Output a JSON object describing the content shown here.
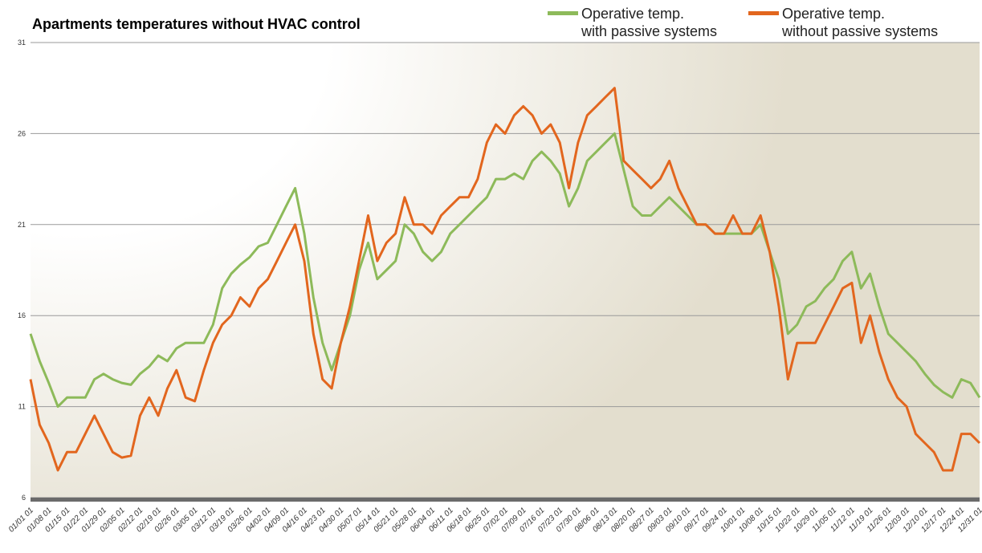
{
  "chart_data": {
    "type": "line",
    "title": "Apartments temperatures without HVAC control",
    "categories": [
      "01/01 01",
      null,
      "01/08 01",
      null,
      "01/15 01",
      null,
      "01/22 01",
      null,
      "01/29 01",
      null,
      "02/05 01",
      null,
      "02/12 01",
      null,
      "02/19 01",
      null,
      "02/26 01",
      null,
      "03/05 01",
      null,
      "03/12 01",
      null,
      "03/19 01",
      null,
      "03/26 01",
      null,
      "04/02 01",
      null,
      "04/09 01",
      null,
      "04/16 01",
      null,
      "04/23 01",
      null,
      "04/30 01",
      null,
      "05/07 01",
      null,
      "05/14 01",
      null,
      "05/21 01",
      null,
      "05/28 01",
      null,
      "06/04 01",
      null,
      "06/11 01",
      null,
      "06/18 01",
      null,
      "06/25 01",
      null,
      "07/02 01",
      null,
      "07/09 01",
      null,
      "07/16 01",
      null,
      "07/23 01",
      null,
      "07/30 01",
      null,
      "08/06 01",
      null,
      "08/13 01",
      null,
      "08/20 01",
      null,
      "08/27 01",
      null,
      "09/03 01",
      null,
      "09/10 01",
      null,
      "09/17 01",
      null,
      "09/24 01",
      null,
      "10/01 01",
      null,
      "10/08 01",
      null,
      "10/15 01",
      null,
      "10/22 01",
      null,
      "10/29 01",
      null,
      "11/05 01",
      null,
      "11/12 01",
      null,
      "11/19 01",
      null,
      "11/26 01",
      null,
      "12/03 01",
      null,
      "12/10 01",
      null,
      "12/17 01",
      null,
      "12/24 01",
      null,
      "12/31 01"
    ],
    "series": [
      {
        "name": "Operative  temp.\nwith passive systems",
        "color": "#8dba5a",
        "values": [
          15,
          13.5,
          12.3,
          11,
          11.5,
          11.5,
          11.5,
          12.5,
          12.8,
          12.5,
          12.3,
          12.2,
          12.8,
          13.2,
          13.8,
          13.5,
          14.2,
          14.5,
          14.5,
          14.5,
          15.5,
          17.5,
          18.3,
          18.8,
          19.2,
          19.8,
          20,
          21,
          22,
          23,
          20.5,
          17,
          14.5,
          13,
          14.5,
          16,
          18.5,
          20,
          18,
          18.5,
          19,
          21,
          20.5,
          19.5,
          19,
          19.5,
          20.5,
          21,
          21.5,
          22,
          22.5,
          23.5,
          23.5,
          23.8,
          23.5,
          24.5,
          25,
          24.5,
          23.8,
          22,
          23,
          24.5,
          25,
          25.5,
          26,
          24,
          22,
          21.5,
          21.5,
          22,
          22.5,
          22,
          21.5,
          21,
          21,
          20.5,
          20.5,
          20.5,
          20.5,
          20.5,
          21,
          19.5,
          18,
          15,
          15.5,
          16.5,
          16.8,
          17.5,
          18,
          19,
          19.5,
          17.5,
          18.3,
          16.5,
          15,
          14.5,
          14,
          13.5,
          12.8,
          12.2,
          11.8,
          11.5,
          12.5,
          12.3,
          11.5
        ]
      },
      {
        "name": "Operative  temp.\nwithout passive systems",
        "color": "#e2661e",
        "values": [
          12.5,
          10,
          9,
          7.5,
          8.5,
          8.5,
          9.5,
          10.5,
          9.5,
          8.5,
          8.2,
          8.3,
          10.5,
          11.5,
          10.5,
          12,
          13,
          11.5,
          11.3,
          13,
          14.5,
          15.5,
          16,
          17,
          16.5,
          17.5,
          18,
          19,
          20,
          21,
          19,
          15,
          12.5,
          12,
          14.5,
          16.5,
          19,
          21.5,
          19,
          20,
          20.5,
          22.5,
          21,
          21,
          20.5,
          21.5,
          22,
          22.5,
          22.5,
          23.5,
          25.5,
          26.5,
          26,
          27,
          27.5,
          27,
          26,
          26.5,
          25.5,
          23,
          25.5,
          27,
          27.5,
          28,
          28.5,
          24.5,
          24,
          23.5,
          23,
          23.5,
          24.5,
          23,
          22,
          21,
          21,
          20.5,
          20.5,
          21.5,
          20.5,
          20.5,
          21.5,
          19.5,
          16.5,
          12.5,
          14.5,
          14.5,
          14.5,
          15.5,
          16.5,
          17.5,
          17.8,
          14.5,
          16,
          14,
          12.5,
          11.5,
          11,
          9.5,
          9,
          8.5,
          7.5,
          7.5,
          9.5,
          9.5,
          9
        ]
      }
    ],
    "ylim": [
      6,
      31
    ],
    "yticks": [
      6,
      11,
      16,
      21,
      26,
      31
    ],
    "grid": true
  }
}
